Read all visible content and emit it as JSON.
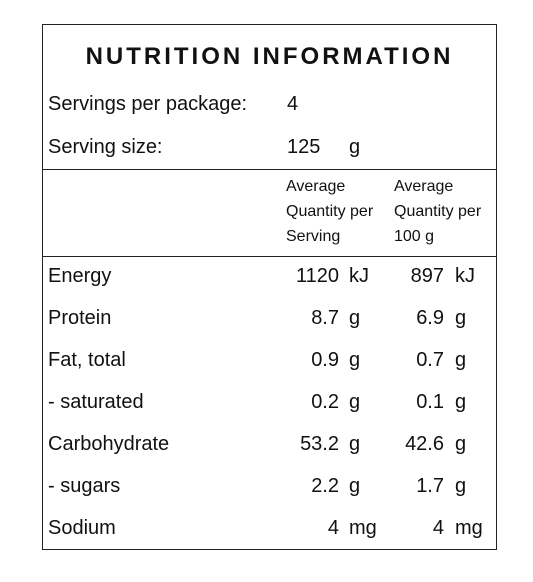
{
  "title": "NUTRITION INFORMATION",
  "servings": {
    "label": "Servings per package:",
    "value": 4
  },
  "serving_size": {
    "label": "Serving size:",
    "value": 125,
    "unit": "g"
  },
  "columns": [
    [
      "Average",
      "Quantity per",
      "Serving"
    ],
    [
      "Average",
      "Quantity per",
      "100 g"
    ]
  ],
  "rows": [
    {
      "name": "Energy",
      "per_serving": 1120,
      "per_100g": 897,
      "unit": "kJ"
    },
    {
      "name": "Protein",
      "per_serving": 8.7,
      "per_100g": 6.9,
      "unit": "g"
    },
    {
      "name": "Fat, total",
      "per_serving": 0.9,
      "per_100g": 0.7,
      "unit": "g"
    },
    {
      "name": "- saturated",
      "per_serving": 0.2,
      "per_100g": 0.1,
      "unit": "g"
    },
    {
      "name": "Carbohydrate",
      "per_serving": 53.2,
      "per_100g": 42.6,
      "unit": "g"
    },
    {
      "name": "- sugars",
      "per_serving": 2.2,
      "per_100g": 1.7,
      "unit": "g"
    },
    {
      "name": "Sodium",
      "per_serving": 4,
      "per_100g": 4,
      "unit": "mg"
    }
  ]
}
